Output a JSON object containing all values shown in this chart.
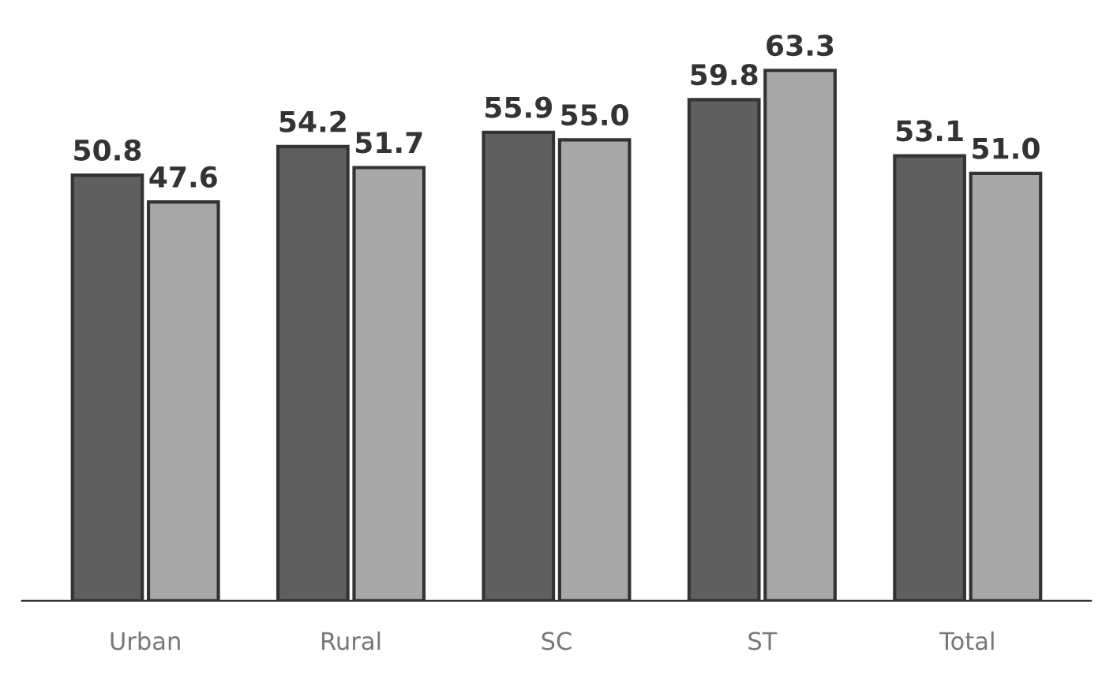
{
  "chart_data": {
    "type": "bar",
    "categories": [
      "Urban",
      "Rural",
      "SC",
      "ST",
      "Total"
    ],
    "series": [
      {
        "color": "#5f5f5f",
        "values": [
          50.8,
          54.2,
          55.9,
          59.8,
          53.1
        ],
        "value_labels": [
          "50.8",
          "54.2",
          "55.9",
          "59.8",
          "53.1"
        ]
      },
      {
        "color": "#a8a8a8",
        "values": [
          47.6,
          51.7,
          55.0,
          63.3,
          51.0
        ],
        "value_labels": [
          "47.6",
          "51.7",
          "55.0",
          "63.3",
          "51.0"
        ]
      }
    ],
    "grid": false
  }
}
